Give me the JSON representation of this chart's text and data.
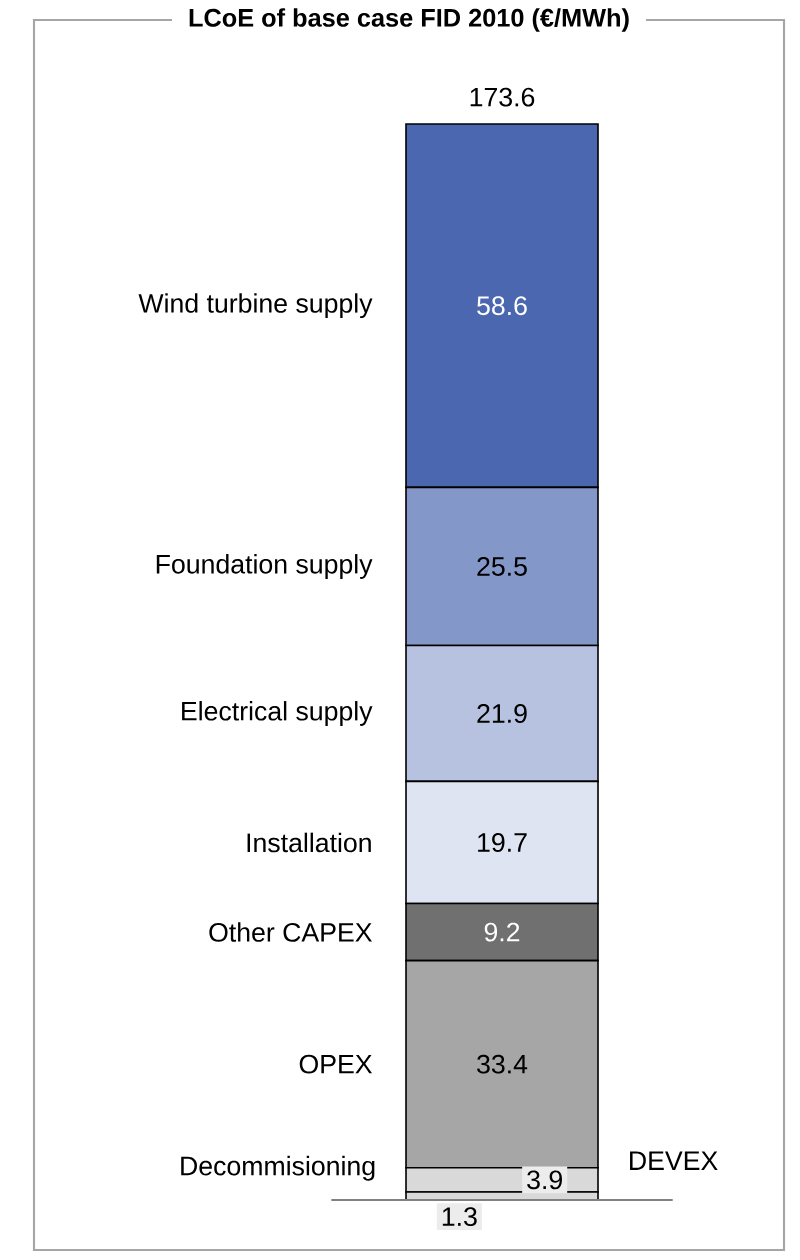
{
  "chart_data": {
    "type": "bar",
    "title": "LCoE of base case FID 2010 (€/MWh)",
    "stacked": true,
    "categories": [
      null
    ],
    "data_labels": true,
    "totals": [
      "173.6"
    ],
    "series": [
      {
        "name": "Decommisioning",
        "color": "#d9d9d9",
        "values": [
          1.3
        ]
      },
      {
        "name": "DEVEX",
        "color": "#d9d9d9",
        "values": [
          3.9
        ]
      },
      {
        "name": "OPEX",
        "color": "#a6a6a6",
        "values": [
          33.4
        ]
      },
      {
        "name": "Other CAPEX",
        "color": "#707070",
        "values": [
          9.2
        ]
      },
      {
        "name": "Installation",
        "color": "#dfe4f2",
        "values": [
          19.7
        ]
      },
      {
        "name": "Electrical supply",
        "color": "#b7c2e0",
        "values": [
          21.9
        ]
      },
      {
        "name": "Foundation supply",
        "color": "#8497c9",
        "values": [
          25.5
        ]
      },
      {
        "name": "Wind turbine supply",
        "color": "#4a67b0",
        "values": [
          58.6
        ]
      }
    ]
  }
}
